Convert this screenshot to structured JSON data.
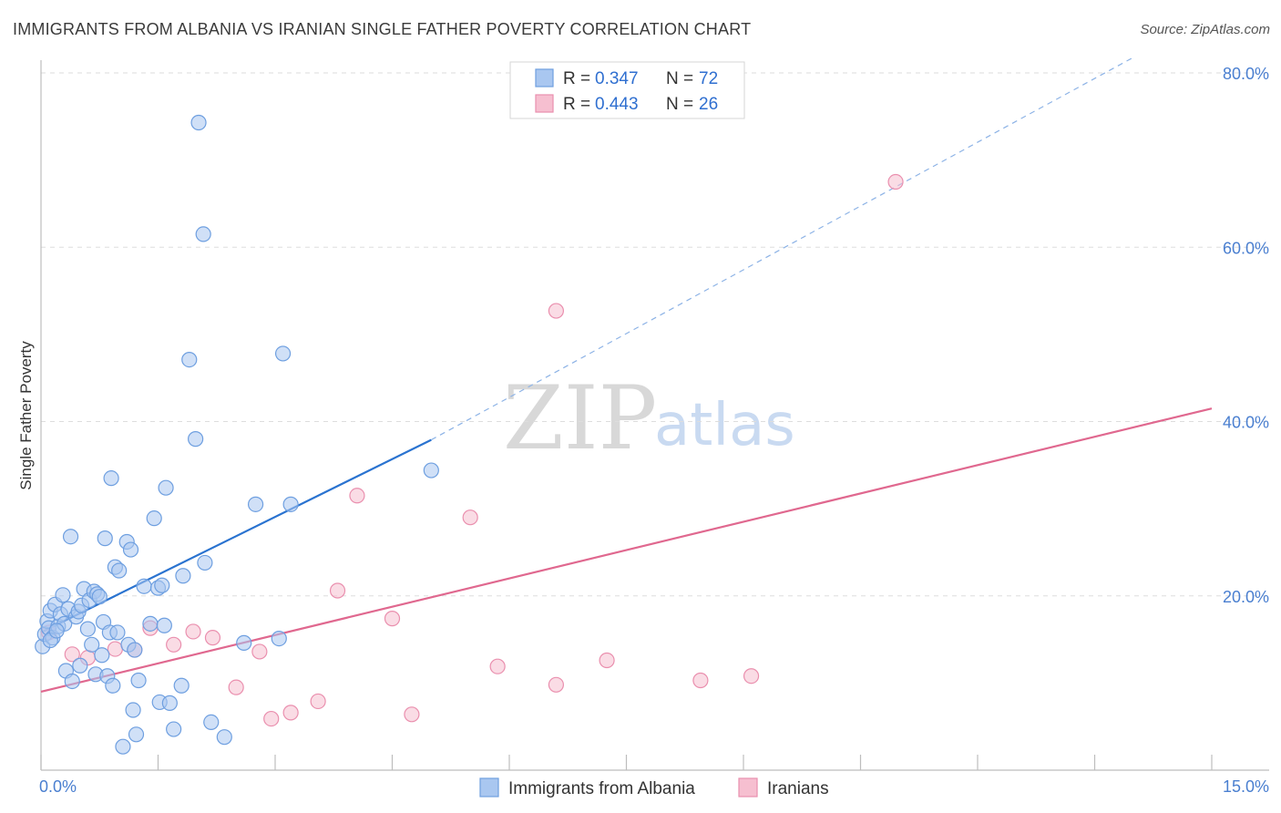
{
  "header": {
    "title": "IMMIGRANTS FROM ALBANIA VS IRANIAN SINGLE FATHER POVERTY CORRELATION CHART",
    "source": "Source: ZipAtlas.com"
  },
  "watermark": {
    "zip": "ZIP",
    "atlas": "atlas"
  },
  "legend_top": {
    "rows": [
      {
        "r_label": "R =",
        "r_value": "0.347",
        "n_label": "N =",
        "n_value": "72"
      },
      {
        "r_label": "R =",
        "r_value": "0.443",
        "n_label": "N =",
        "n_value": "26"
      }
    ]
  },
  "legend_bottom": {
    "items": [
      {
        "label": "Immigrants from Albania"
      },
      {
        "label": "Iranians"
      }
    ]
  },
  "colors": {
    "albania_fill": "#a9c7f0",
    "albania_stroke": "#6e9fe0",
    "albania_line": "#2a73d0",
    "iran_fill": "#f6bfd0",
    "iran_stroke": "#ea8fae",
    "iran_line": "#e0688f",
    "tick_label": "#4a7fd0",
    "grid": "#dddddd"
  },
  "chart_data": {
    "type": "scatter",
    "title": "IMMIGRANTS FROM ALBANIA VS IRANIAN SINGLE FATHER POVERTY CORRELATION CHART",
    "xlabel": "",
    "ylabel": "Single Father Poverty",
    "xlim": [
      0,
      15
    ],
    "ylim": [
      0,
      80
    ],
    "x_tick_labels": [
      "0.0%",
      "15.0%"
    ],
    "y_ticks": [
      20,
      40,
      60,
      80
    ],
    "y_tick_labels": [
      "20.0%",
      "40.0%",
      "60.0%",
      "80.0%"
    ],
    "grid": true,
    "legend_position": "top-center",
    "series": [
      {
        "name": "Immigrants from Albania",
        "R": 0.347,
        "N": 72,
        "trend": {
          "x0": 0,
          "y0": 15.8,
          "x1": 5.0,
          "y1": 37.9,
          "dashed_to_x": 14.0,
          "dashed_to_y": 81.8
        },
        "points": [
          [
            0.02,
            14.2
          ],
          [
            0.05,
            15.6
          ],
          [
            0.08,
            17.1
          ],
          [
            0.1,
            16.3
          ],
          [
            0.12,
            18.3
          ],
          [
            0.15,
            15.2
          ],
          [
            0.18,
            19.0
          ],
          [
            0.22,
            16.5
          ],
          [
            0.25,
            17.9
          ],
          [
            0.28,
            20.1
          ],
          [
            0.3,
            16.8
          ],
          [
            0.32,
            11.4
          ],
          [
            0.35,
            18.5
          ],
          [
            0.38,
            26.8
          ],
          [
            0.4,
            10.2
          ],
          [
            0.45,
            17.6
          ],
          [
            0.48,
            18.2
          ],
          [
            0.5,
            12.0
          ],
          [
            0.52,
            18.9
          ],
          [
            0.55,
            20.8
          ],
          [
            0.6,
            16.2
          ],
          [
            0.62,
            19.5
          ],
          [
            0.65,
            14.4
          ],
          [
            0.68,
            20.5
          ],
          [
            0.7,
            11.0
          ],
          [
            0.72,
            20.2
          ],
          [
            0.75,
            19.9
          ],
          [
            0.78,
            13.2
          ],
          [
            0.8,
            17.0
          ],
          [
            0.82,
            26.6
          ],
          [
            0.85,
            10.8
          ],
          [
            0.88,
            15.8
          ],
          [
            0.9,
            33.5
          ],
          [
            0.92,
            9.7
          ],
          [
            0.95,
            23.3
          ],
          [
            0.98,
            15.8
          ],
          [
            1.0,
            22.9
          ],
          [
            1.1,
            26.2
          ],
          [
            1.12,
            14.4
          ],
          [
            1.15,
            25.3
          ],
          [
            1.18,
            6.9
          ],
          [
            1.2,
            13.8
          ],
          [
            1.22,
            4.1
          ],
          [
            1.25,
            10.3
          ],
          [
            1.32,
            21.1
          ],
          [
            1.4,
            16.8
          ],
          [
            1.45,
            28.9
          ],
          [
            1.5,
            20.9
          ],
          [
            1.52,
            7.8
          ],
          [
            1.55,
            21.2
          ],
          [
            1.58,
            16.6
          ],
          [
            1.6,
            32.4
          ],
          [
            1.65,
            7.7
          ],
          [
            1.7,
            4.7
          ],
          [
            1.8,
            9.7
          ],
          [
            1.82,
            22.3
          ],
          [
            1.9,
            47.1
          ],
          [
            1.98,
            38.0
          ],
          [
            2.1,
            23.8
          ],
          [
            2.02,
            74.3
          ],
          [
            2.08,
            61.5
          ],
          [
            2.18,
            5.5
          ],
          [
            2.35,
            3.8
          ],
          [
            2.6,
            14.6
          ],
          [
            2.75,
            30.5
          ],
          [
            3.05,
            15.1
          ],
          [
            3.1,
            47.8
          ],
          [
            3.2,
            30.5
          ],
          [
            5.0,
            34.4
          ],
          [
            1.05,
            2.7
          ],
          [
            0.12,
            14.9
          ],
          [
            0.2,
            16.0
          ]
        ]
      },
      {
        "name": "Iranians",
        "R": 0.443,
        "N": 26,
        "trend": {
          "x0": 0,
          "y0": 9.0,
          "x1": 15.0,
          "y1": 41.5
        },
        "points": [
          [
            0.1,
            15.8
          ],
          [
            0.4,
            13.3
          ],
          [
            0.6,
            12.9
          ],
          [
            0.95,
            13.9
          ],
          [
            1.2,
            13.8
          ],
          [
            1.4,
            16.3
          ],
          [
            1.7,
            14.4
          ],
          [
            1.95,
            15.9
          ],
          [
            2.2,
            15.2
          ],
          [
            2.5,
            9.5
          ],
          [
            2.8,
            13.6
          ],
          [
            2.95,
            5.9
          ],
          [
            3.2,
            6.6
          ],
          [
            3.55,
            7.9
          ],
          [
            3.8,
            20.6
          ],
          [
            4.05,
            31.5
          ],
          [
            4.5,
            17.4
          ],
          [
            4.75,
            6.4
          ],
          [
            5.5,
            29.0
          ],
          [
            5.85,
            11.9
          ],
          [
            6.6,
            52.7
          ],
          [
            6.6,
            9.8
          ],
          [
            7.25,
            12.6
          ],
          [
            8.45,
            10.3
          ],
          [
            9.1,
            10.8
          ],
          [
            10.95,
            67.5
          ]
        ]
      }
    ]
  }
}
